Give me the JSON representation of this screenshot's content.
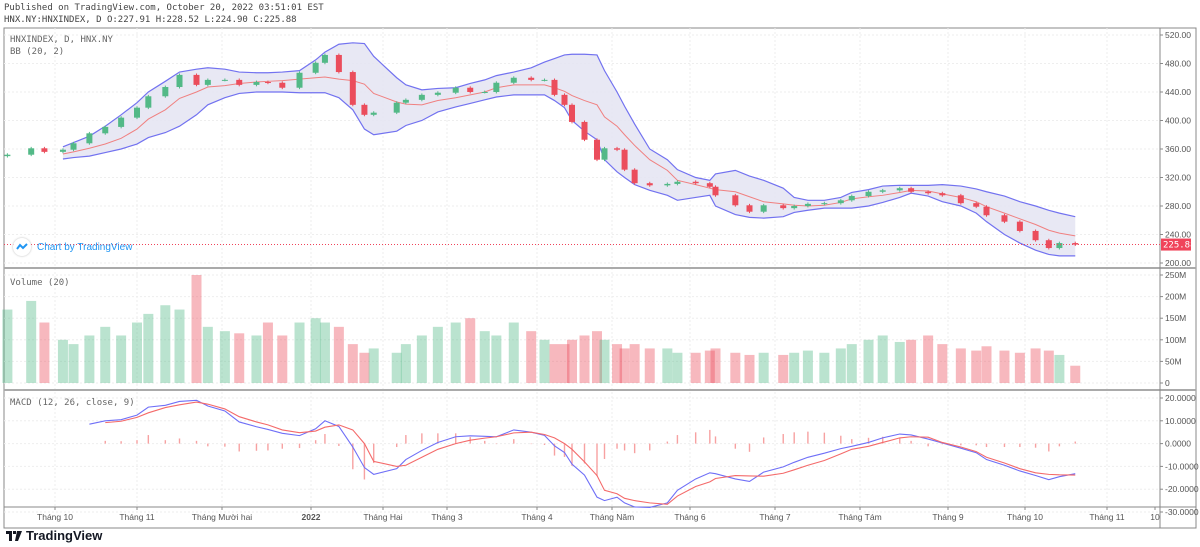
{
  "header": {
    "published": "Published on TradingView.com, October 20, 2022 03:51:01 EST",
    "ohlc": "HNX.NY:HNXINDEX, D O:227.91 H:228.52 L:224.90 C:225.88"
  },
  "legend": {
    "symbol": "HNXINDEX, D, HNX.NY",
    "bb": "BB (20, 2)",
    "volume": "Volume (20)",
    "macd": "MACD (12, 26, close, 9)"
  },
  "watermark": "Chart by TradingView",
  "brand": "TradingView",
  "colors": {
    "up": "#53b987",
    "down": "#eb4d5c",
    "bb_band": "#7272f0",
    "bb_fill": "#e4e4f2",
    "bb_mid": "#f08080",
    "macd": "#6f6ff7",
    "signal": "#f46a6a",
    "histogram": "#f7a1a1",
    "last_price": "#f0435a"
  },
  "chart_data": [
    {
      "type": "candlestick",
      "pane": "price",
      "ylim": [
        200,
        520
      ],
      "y_ticks": [
        "520.00",
        "480.00",
        "440.00",
        "400.00",
        "360.00",
        "320.00",
        "280.00",
        "240.00",
        "200.00"
      ],
      "y_tick_values": [
        520,
        480,
        440,
        400,
        360,
        320,
        280,
        240,
        200
      ],
      "last_price": 225.88,
      "last_price_label": "225.88",
      "grid": true,
      "x": [
        "2021-09-13",
        "2021-09-22",
        "2021-09-27",
        "2021-10-04",
        "2021-10-08",
        "2021-10-14",
        "2021-10-20",
        "2021-10-26",
        "2021-11-01",
        "2021-11-05",
        "2021-11-11",
        "2021-11-16",
        "2021-11-22",
        "2021-11-26",
        "2021-12-02",
        "2021-12-07",
        "2021-12-13",
        "2021-12-17",
        "2021-12-22",
        "2021-12-28",
        "2022-01-03",
        "2022-01-07",
        "2022-01-13",
        "2022-01-19",
        "2022-01-24",
        "2022-01-28",
        "2022-02-07",
        "2022-02-11",
        "2022-02-18",
        "2022-02-25",
        "2022-03-04",
        "2022-03-09",
        "2022-03-14",
        "2022-03-18",
        "2022-03-24",
        "2022-03-30",
        "2022-04-04",
        "2022-04-08",
        "2022-04-12",
        "2022-04-15",
        "2022-04-20",
        "2022-04-25",
        "2022-04-28",
        "2022-05-03",
        "2022-05-06",
        "2022-05-10",
        "2022-05-16",
        "2022-05-23",
        "2022-05-27",
        "2022-06-03",
        "2022-06-08",
        "2022-06-10",
        "2022-06-17",
        "2022-06-22",
        "2022-06-27",
        "2022-07-04",
        "2022-07-08",
        "2022-07-13",
        "2022-07-19",
        "2022-07-25",
        "2022-07-29",
        "2022-08-04",
        "2022-08-09",
        "2022-08-15",
        "2022-08-19",
        "2022-08-25",
        "2022-08-30",
        "2022-09-06",
        "2022-09-12",
        "2022-09-16",
        "2022-09-23",
        "2022-09-29",
        "2022-10-05",
        "2022-10-10",
        "2022-10-14",
        "2022-10-20"
      ],
      "close": [
        352,
        361,
        356,
        359,
        368,
        382,
        391,
        404,
        418,
        434,
        447,
        464,
        450,
        457,
        457,
        450,
        454,
        453,
        446,
        467,
        481,
        492,
        468,
        422,
        408,
        411,
        425,
        429,
        436,
        439,
        446,
        440,
        440,
        453,
        460,
        457,
        457,
        436,
        422,
        398,
        373,
        345,
        361,
        359,
        331,
        312,
        309,
        311,
        314,
        312,
        307,
        295,
        281,
        272,
        281,
        277,
        280,
        283,
        284,
        288,
        294,
        300,
        302,
        305,
        300,
        298,
        295,
        284,
        279,
        267,
        258,
        245,
        232,
        221,
        228,
        225.88
      ],
      "bb_upper": [
        null,
        null,
        null,
        363,
        369,
        378,
        392,
        408,
        425,
        440,
        455,
        468,
        472,
        474,
        472,
        468,
        467,
        467,
        468,
        470,
        485,
        496,
        507,
        509,
        508,
        490,
        460,
        450,
        443,
        445,
        446,
        452,
        457,
        463,
        468,
        474,
        482,
        487,
        492,
        493,
        493,
        492,
        470,
        440,
        420,
        395,
        360,
        345,
        331,
        320,
        316,
        325,
        330,
        322,
        316,
        305,
        292,
        288,
        288,
        292,
        299,
        303,
        308,
        309,
        309,
        309,
        310,
        308,
        304,
        300,
        294,
        286,
        280,
        274,
        270,
        265
      ],
      "bb_mid": [
        null,
        null,
        null,
        353,
        356,
        361,
        367,
        375,
        388,
        402,
        415,
        431,
        440,
        447,
        449,
        452,
        454,
        455,
        456,
        458,
        460,
        461,
        458,
        456,
        451,
        438,
        426,
        423,
        422,
        428,
        432,
        436,
        440,
        446,
        450,
        450,
        450,
        446,
        441,
        435,
        428,
        422,
        405,
        392,
        380,
        365,
        345,
        330,
        316,
        310,
        305,
        303,
        300,
        293,
        286,
        283,
        281,
        280,
        281,
        285,
        290,
        293,
        295,
        299,
        302,
        301,
        297,
        292,
        286,
        279,
        270,
        262,
        254,
        246,
        242,
        238
      ],
      "bb_lower": [
        null,
        null,
        null,
        346,
        348,
        350,
        355,
        360,
        367,
        376,
        383,
        392,
        408,
        422,
        432,
        438,
        440,
        440,
        440,
        439,
        439,
        439,
        432,
        415,
        388,
        380,
        385,
        393,
        400,
        412,
        419,
        424,
        429,
        433,
        436,
        436,
        436,
        428,
        418,
        400,
        385,
        373,
        345,
        328,
        320,
        310,
        302,
        295,
        288,
        292,
        295,
        280,
        268,
        264,
        263,
        265,
        271,
        274,
        277,
        277,
        277,
        280,
        285,
        292,
        298,
        294,
        286,
        280,
        270,
        258,
        240,
        228,
        218,
        212,
        210,
        210
      ]
    },
    {
      "type": "bar",
      "pane": "volume",
      "ylabel_unit": "M",
      "ylim": [
        0,
        260
      ],
      "y_ticks": [
        "250M",
        "200M",
        "150M",
        "100M",
        "50M",
        "0"
      ],
      "y_tick_values": [
        250,
        200,
        150,
        100,
        50,
        0
      ],
      "values": [
        170,
        190,
        140,
        100,
        90,
        110,
        130,
        110,
        140,
        160,
        180,
        170,
        250,
        130,
        120,
        115,
        110,
        140,
        110,
        140,
        150,
        140,
        130,
        90,
        70,
        80,
        70,
        90,
        110,
        130,
        140,
        150,
        120,
        110,
        140,
        120,
        100,
        90,
        90,
        100,
        110,
        120,
        100,
        90,
        80,
        90,
        80,
        80,
        70,
        70,
        75,
        80,
        70,
        65,
        70,
        65,
        70,
        75,
        70,
        80,
        90,
        100,
        110,
        95,
        100,
        110,
        90,
        80,
        75,
        85,
        75,
        70,
        80,
        75,
        65,
        40
      ]
    },
    {
      "type": "line",
      "pane": "macd",
      "ylim": [
        -32,
        22
      ],
      "y_ticks": [
        "20.0000",
        "10.0000",
        "0.0000",
        "-10.0000",
        "-20.0000",
        "-30.0000"
      ],
      "y_tick_values": [
        20,
        10,
        0,
        -10,
        -20,
        -30
      ],
      "macd": [
        null,
        null,
        null,
        null,
        null,
        8.5,
        10,
        10.5,
        12.5,
        16,
        16.8,
        18.5,
        19,
        16.5,
        14.3,
        9.5,
        7.4,
        6.2,
        4.5,
        3.5,
        6.5,
        10,
        7.5,
        -1.5,
        -10.5,
        -13.5,
        -11,
        -7,
        -3,
        0.5,
        3,
        3.4,
        3.2,
        3,
        6,
        5,
        3.6,
        -1,
        -3.9,
        -9,
        -13.8,
        -23.5,
        -25,
        -23.5,
        -26,
        -27.8,
        -28,
        -26,
        -20.5,
        -15.5,
        -12.8,
        -13.2,
        -15.5,
        -16.6,
        -12.5,
        -10.2,
        -8.2,
        -6,
        -4.2,
        -2.2,
        -1.2,
        0.5,
        2.5,
        4.2,
        3.8,
        2,
        0.3,
        -2,
        -4,
        -7,
        -9.5,
        -12,
        -14,
        -15.8,
        -14.5,
        -13.2
      ],
      "signal": [
        null,
        null,
        null,
        null,
        null,
        null,
        9.2,
        9.8,
        11.5,
        13.5,
        15.8,
        17,
        18.2,
        17.3,
        15.2,
        11.8,
        9.5,
        8.2,
        6,
        4.8,
        5.5,
        7.2,
        8.2,
        6,
        0,
        -7.8,
        -10,
        -9.5,
        -6,
        -2.5,
        0,
        1.5,
        2.4,
        3,
        4.7,
        5,
        4,
        2.5,
        0,
        -2.5,
        -8,
        -14,
        -20.5,
        -22,
        -24,
        -25,
        -26,
        -26.6,
        -23,
        -18.8,
        -16.8,
        -15.3,
        -14,
        -14.2,
        -14.3,
        -13,
        -11.5,
        -9.5,
        -7.4,
        -4.5,
        -2.5,
        -1.2,
        0.5,
        2.5,
        3,
        2.8,
        0.5,
        -1.5,
        -3.5,
        -6,
        -8.5,
        -11,
        -12.8,
        -13.5,
        -13.7,
        -13.8
      ]
    }
  ],
  "x_ticks": [
    {
      "label": "Tháng 10",
      "date": "2021-10-01"
    },
    {
      "label": "Tháng 11",
      "date": "2021-11-01"
    },
    {
      "label": "Tháng Mười hai",
      "date": "2021-12-01"
    },
    {
      "label": "2022",
      "date": "2022-01-01",
      "bold": true
    },
    {
      "label": "Tháng Hai",
      "date": "2022-02-01"
    },
    {
      "label": "Tháng 3",
      "date": "2022-03-01"
    },
    {
      "label": "Tháng 4",
      "date": "2022-04-01"
    },
    {
      "label": "Tháng Năm",
      "date": "2022-05-01"
    },
    {
      "label": "Tháng 6",
      "date": "2022-06-01"
    },
    {
      "label": "Tháng 7",
      "date": "2022-07-01"
    },
    {
      "label": "Tháng Tám",
      "date": "2022-08-01"
    },
    {
      "label": "Tháng 9",
      "date": "2022-09-01"
    },
    {
      "label": "Tháng 10",
      "date": "2022-10-01"
    },
    {
      "label": "Tháng 11",
      "date": "2022-11-01"
    },
    {
      "label": "10",
      "date": "2022-11-10"
    }
  ]
}
